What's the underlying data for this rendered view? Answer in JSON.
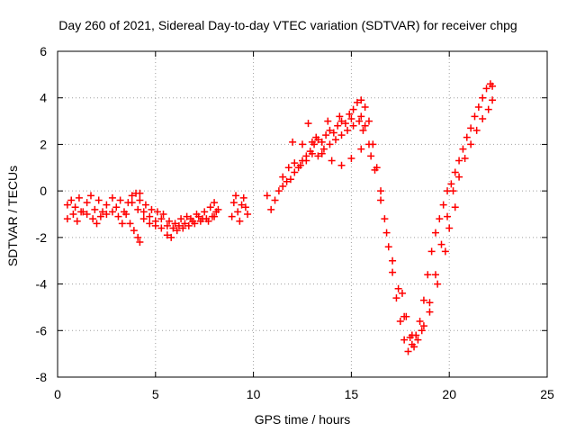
{
  "chart_data": {
    "type": "scatter",
    "title": "Day 260 of 2021, Sidereal Day-to-day VTEC variation (SDTVAR) for receiver chpg",
    "xlabel": "GPS time / hours",
    "ylabel": "SDTVAR / TECUs",
    "xlim": [
      0,
      25
    ],
    "ylim": [
      -8,
      6
    ],
    "xticks": [
      "0",
      "5",
      "10",
      "15",
      "20",
      "25"
    ],
    "yticks": [
      "6",
      "4",
      "2",
      "0",
      "-2",
      "-4",
      "-6",
      "-8"
    ],
    "grid": true,
    "marker": "+",
    "marker_color": "#ff0000",
    "series": [
      {
        "points": [
          [
            0.5,
            -1.2
          ],
          [
            0.7,
            -0.4
          ],
          [
            0.9,
            -0.7
          ],
          [
            1.1,
            -0.3
          ],
          [
            1.3,
            -0.9
          ],
          [
            1.5,
            -0.5
          ],
          [
            1.7,
            -0.2
          ],
          [
            1.9,
            -0.8
          ],
          [
            2.1,
            -0.4
          ],
          [
            2.3,
            -0.9
          ],
          [
            2.5,
            -0.6
          ],
          [
            2.8,
            -0.3
          ],
          [
            3.0,
            -0.7
          ],
          [
            3.2,
            -0.4
          ],
          [
            3.4,
            -0.9
          ],
          [
            3.6,
            -0.5
          ],
          [
            3.8,
            -0.2
          ],
          [
            4.0,
            -0.1
          ],
          [
            4.2,
            -0.4
          ],
          [
            0.5,
            -0.6
          ],
          [
            0.8,
            -1.0
          ],
          [
            1.0,
            -1.3
          ],
          [
            1.2,
            -0.9
          ],
          [
            1.5,
            -1.0
          ],
          [
            1.8,
            -1.2
          ],
          [
            2.0,
            -1.4
          ],
          [
            2.2,
            -1.1
          ],
          [
            2.5,
            -1.0
          ],
          [
            2.8,
            -0.9
          ],
          [
            3.1,
            -1.1
          ],
          [
            3.3,
            -1.4
          ],
          [
            3.5,
            -1.0
          ],
          [
            3.7,
            -1.4
          ],
          [
            3.9,
            -1.7
          ],
          [
            4.1,
            -2.0
          ],
          [
            4.2,
            -2.2
          ],
          [
            3.8,
            -0.5
          ],
          [
            4.1,
            -0.8
          ],
          [
            4.4,
            -0.9
          ],
          [
            4.7,
            -1.1
          ],
          [
            5.0,
            -1.3
          ],
          [
            5.3,
            -1.6
          ],
          [
            5.6,
            -1.9
          ],
          [
            5.8,
            -2.0
          ],
          [
            6.1,
            -1.7
          ],
          [
            6.4,
            -1.6
          ],
          [
            6.7,
            -1.5
          ],
          [
            7.0,
            -1.4
          ],
          [
            7.3,
            -1.3
          ],
          [
            7.6,
            -1.2
          ],
          [
            7.9,
            -1.1
          ],
          [
            8.1,
            -0.9
          ],
          [
            4.2,
            -0.1
          ],
          [
            4.5,
            -0.6
          ],
          [
            4.8,
            -0.8
          ],
          [
            5.1,
            -0.9
          ],
          [
            5.4,
            -1.0
          ],
          [
            5.7,
            -1.3
          ],
          [
            6.0,
            -1.4
          ],
          [
            6.3,
            -1.2
          ],
          [
            6.6,
            -1.1
          ],
          [
            6.9,
            -1.3
          ],
          [
            7.2,
            -1.1
          ],
          [
            7.5,
            -0.9
          ],
          [
            7.8,
            -0.7
          ],
          [
            8.0,
            -0.5
          ],
          [
            4.4,
            -1.2
          ],
          [
            4.7,
            -1.4
          ],
          [
            5.0,
            -1.5
          ],
          [
            5.3,
            -1.2
          ],
          [
            5.6,
            -1.5
          ],
          [
            5.9,
            -1.6
          ],
          [
            6.2,
            -1.5
          ],
          [
            6.5,
            -1.4
          ],
          [
            6.8,
            -1.2
          ],
          [
            7.1,
            -1.0
          ],
          [
            7.4,
            -1.2
          ],
          [
            7.7,
            -1.3
          ],
          [
            8.0,
            -1.1
          ],
          [
            8.2,
            -0.8
          ],
          [
            8.9,
            -1.1
          ],
          [
            9.0,
            -0.5
          ],
          [
            9.1,
            -0.2
          ],
          [
            9.2,
            -0.9
          ],
          [
            9.3,
            -1.3
          ],
          [
            9.4,
            -0.6
          ],
          [
            9.5,
            -0.3
          ],
          [
            9.6,
            -0.7
          ],
          [
            9.7,
            -1.0
          ],
          [
            10.7,
            -0.2
          ],
          [
            10.9,
            -0.8
          ],
          [
            11.1,
            -0.4
          ],
          [
            11.3,
            0.0
          ],
          [
            11.5,
            0.2
          ],
          [
            11.7,
            0.4
          ],
          [
            11.9,
            0.5
          ],
          [
            12.1,
            0.8
          ],
          [
            12.3,
            1.0
          ],
          [
            12.5,
            1.3
          ],
          [
            12.7,
            1.5
          ],
          [
            12.9,
            1.7
          ],
          [
            13.1,
            2.0
          ],
          [
            13.3,
            2.2
          ],
          [
            13.5,
            2.1
          ],
          [
            13.7,
            2.4
          ],
          [
            13.9,
            2.6
          ],
          [
            14.1,
            2.5
          ],
          [
            14.3,
            2.8
          ],
          [
            14.5,
            3.0
          ],
          [
            14.7,
            2.9
          ],
          [
            14.9,
            3.3
          ],
          [
            15.1,
            3.5
          ],
          [
            15.3,
            3.8
          ],
          [
            15.5,
            3.9
          ],
          [
            15.7,
            3.6
          ],
          [
            15.9,
            3.0
          ],
          [
            11.5,
            0.6
          ],
          [
            11.8,
            1.0
          ],
          [
            12.1,
            1.2
          ],
          [
            12.4,
            1.1
          ],
          [
            12.7,
            1.3
          ],
          [
            13.0,
            1.6
          ],
          [
            13.3,
            1.5
          ],
          [
            13.6,
            1.8
          ],
          [
            13.9,
            2.0
          ],
          [
            14.2,
            2.2
          ],
          [
            14.5,
            2.4
          ],
          [
            14.8,
            2.6
          ],
          [
            15.1,
            2.8
          ],
          [
            15.4,
            3.0
          ],
          [
            15.7,
            2.8
          ],
          [
            12.0,
            2.1
          ],
          [
            12.5,
            2.0
          ],
          [
            13.0,
            2.1
          ],
          [
            13.5,
            1.6
          ],
          [
            14.0,
            1.3
          ],
          [
            14.5,
            1.1
          ],
          [
            15.0,
            1.4
          ],
          [
            15.5,
            1.8
          ],
          [
            16.0,
            1.5
          ],
          [
            12.8,
            2.9
          ],
          [
            13.2,
            2.3
          ],
          [
            13.8,
            3.0
          ],
          [
            14.4,
            3.2
          ],
          [
            15.0,
            3.1
          ],
          [
            15.5,
            3.2
          ],
          [
            16.1,
            2.0
          ],
          [
            16.3,
            1.0
          ],
          [
            16.5,
            0.0
          ],
          [
            16.7,
            -1.2
          ],
          [
            16.9,
            -2.4
          ],
          [
            17.1,
            -3.5
          ],
          [
            17.3,
            -4.6
          ],
          [
            17.5,
            -5.6
          ],
          [
            17.7,
            -6.4
          ],
          [
            17.9,
            -6.9
          ],
          [
            18.1,
            -6.6
          ],
          [
            18.3,
            -6.2
          ],
          [
            18.5,
            -5.6
          ],
          [
            18.7,
            -4.7
          ],
          [
            18.9,
            -3.6
          ],
          [
            19.1,
            -2.6
          ],
          [
            19.3,
            -1.8
          ],
          [
            19.5,
            -1.2
          ],
          [
            19.7,
            -0.6
          ],
          [
            19.9,
            0.0
          ],
          [
            20.1,
            0.3
          ],
          [
            20.3,
            0.8
          ],
          [
            20.5,
            1.3
          ],
          [
            20.7,
            1.8
          ],
          [
            20.9,
            2.3
          ],
          [
            21.1,
            2.7
          ],
          [
            21.3,
            3.2
          ],
          [
            21.5,
            3.6
          ],
          [
            21.7,
            4.0
          ],
          [
            21.9,
            4.4
          ],
          [
            22.1,
            4.6
          ],
          [
            22.2,
            4.5
          ],
          [
            15.6,
            2.6
          ],
          [
            15.9,
            2.0
          ],
          [
            16.2,
            0.9
          ],
          [
            16.5,
            -0.4
          ],
          [
            16.8,
            -1.8
          ],
          [
            17.1,
            -3.0
          ],
          [
            17.4,
            -4.2
          ],
          [
            17.7,
            -5.4
          ],
          [
            18.0,
            -6.3
          ],
          [
            18.2,
            -6.7
          ],
          [
            18.4,
            -6.4
          ],
          [
            18.7,
            -5.8
          ],
          [
            19.0,
            -4.8
          ],
          [
            19.3,
            -3.6
          ],
          [
            19.6,
            -2.3
          ],
          [
            19.9,
            -1.1
          ],
          [
            20.2,
            0.0
          ],
          [
            20.5,
            0.6
          ],
          [
            20.8,
            1.4
          ],
          [
            21.1,
            2.0
          ],
          [
            21.4,
            2.6
          ],
          [
            21.7,
            3.1
          ],
          [
            22.0,
            3.5
          ],
          [
            22.2,
            3.9
          ],
          [
            17.6,
            -4.4
          ],
          [
            17.8,
            -5.4
          ],
          [
            18.1,
            -6.2
          ],
          [
            18.6,
            -6.0
          ],
          [
            19.0,
            -5.2
          ],
          [
            19.4,
            -4.0
          ],
          [
            19.8,
            -2.6
          ],
          [
            20.0,
            -1.6
          ],
          [
            20.3,
            -0.7
          ]
        ]
      }
    ]
  }
}
